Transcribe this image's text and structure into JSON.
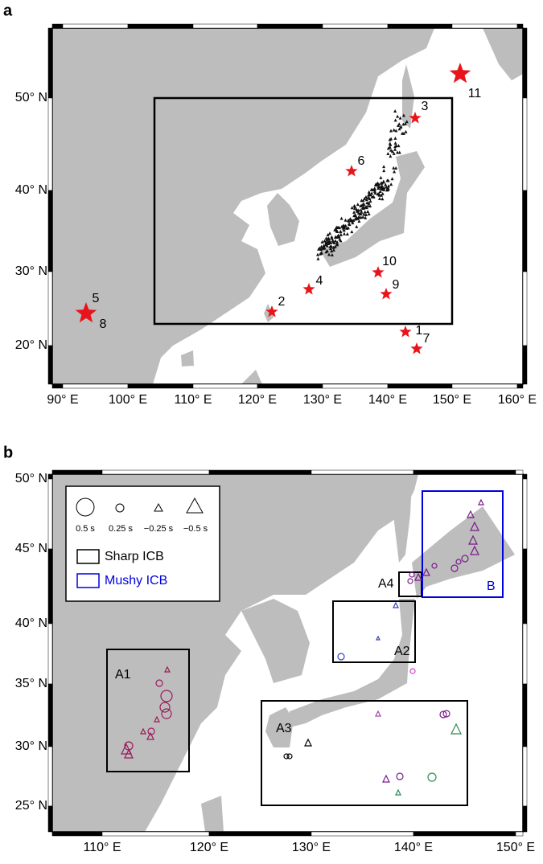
{
  "panel_a": {
    "label": "a",
    "x_ticks": [
      "90° E",
      "100° E",
      "110° E",
      "120° E",
      "130° E",
      "140° E",
      "150° E",
      "160° E"
    ],
    "y_ticks": [
      "50° N",
      "40° N",
      "30° N",
      "20° N"
    ],
    "event_labels": [
      "11",
      "3",
      "6",
      "10",
      "4",
      "9",
      "2",
      "5",
      "8",
      "1",
      "7"
    ]
  },
  "panel_b": {
    "label": "b",
    "x_ticks": [
      "110° E",
      "120° E",
      "130° E",
      "140° E",
      "150° E"
    ],
    "y_ticks": [
      "50° N",
      "45° N",
      "40° N",
      "35° N",
      "30° N",
      "25° N"
    ],
    "legend": {
      "sizes": [
        "0.5 s",
        "0.25 s",
        "−0.25 s",
        "−0.5 s"
      ],
      "boxes": [
        "Sharp ICB",
        "Mushy ICB"
      ]
    },
    "regions": [
      "A1",
      "A4",
      "B",
      "A2",
      "A3"
    ]
  }
}
